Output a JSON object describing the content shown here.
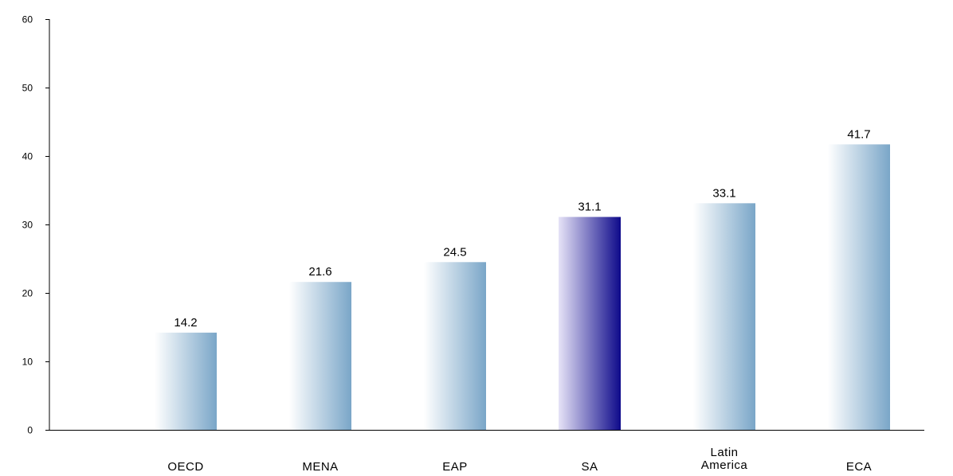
{
  "chart_data": {
    "type": "bar",
    "title": "",
    "xlabel": "",
    "ylabel": "",
    "categories": [
      [
        "OECD"
      ],
      [
        "MENA"
      ],
      [
        "EAP"
      ],
      [
        "SA"
      ],
      [
        "Latin",
        "America"
      ],
      [
        "ECA"
      ]
    ],
    "values": [
      14.2,
      21.6,
      24.5,
      31.1,
      33.1,
      41.7
    ],
    "data_labels": [
      "14.2",
      "21.6",
      "24.5",
      "31.1",
      "33.1",
      "41.7"
    ],
    "highlighted_category": "SA",
    "ylim": [
      0,
      60
    ],
    "yticks": [
      0,
      10,
      20,
      30,
      40,
      50,
      60
    ],
    "grid": false,
    "legend": "none",
    "colors": {
      "bar_light": "#ffffff",
      "bar_dark": "#7aa6c8",
      "highlight_light": "#e6e3f7",
      "highlight_dark": "#0e0a8a",
      "axis": "#000000"
    }
  }
}
